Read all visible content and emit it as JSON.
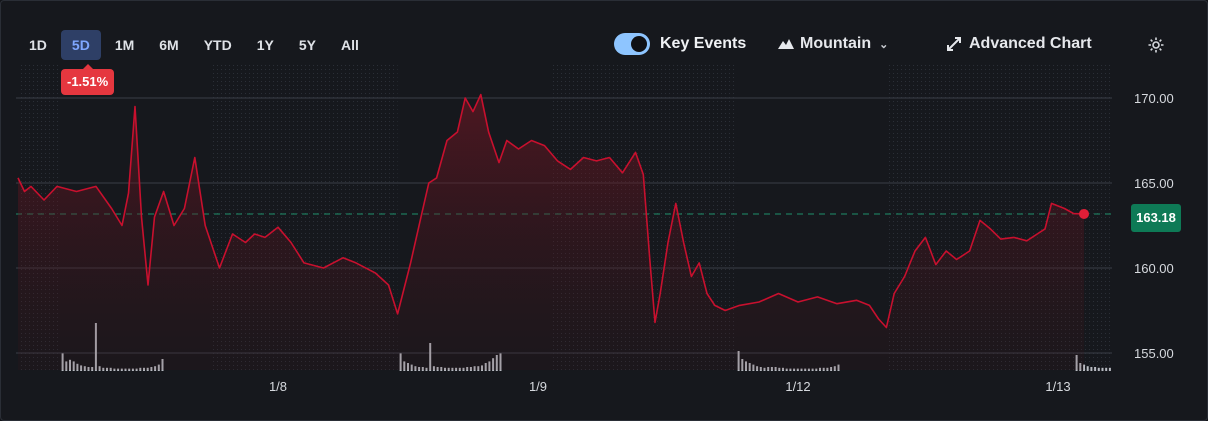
{
  "controls": {
    "ranges": [
      "1D",
      "5D",
      "1M",
      "6M",
      "YTD",
      "1Y",
      "5Y",
      "All"
    ],
    "active_range": "5D",
    "change_badge": "-1.51%",
    "key_events_label": "Key Events",
    "key_events_on": true,
    "chart_type_label": "Mountain",
    "advanced_label": "Advanced Chart"
  },
  "colors": {
    "line": "#c8102e",
    "active_tab": "#2e3f66",
    "badge_red": "#e5373f",
    "last_price_bg": "#0e7a56"
  },
  "chart_data": {
    "type": "area",
    "y_ticks": [
      "170.00",
      "165.00",
      "160.00",
      "155.00"
    ],
    "ylim": [
      154,
      172
    ],
    "x_ticks": [
      "1/8",
      "1/9",
      "1/12",
      "1/13"
    ],
    "last_price_label": "163.18",
    "last_price": 163.18,
    "grid": true,
    "price_series": [
      {
        "x": 0,
        "y": 165.3
      },
      {
        "x": 0.05,
        "y": 164.5
      },
      {
        "x": 0.1,
        "y": 164.8
      },
      {
        "x": 0.2,
        "y": 164.0
      },
      {
        "x": 0.3,
        "y": 164.8
      },
      {
        "x": 0.45,
        "y": 164.5
      },
      {
        "x": 0.6,
        "y": 164.8
      },
      {
        "x": 0.72,
        "y": 163.5
      },
      {
        "x": 0.8,
        "y": 162.5
      },
      {
        "x": 0.85,
        "y": 164.4
      },
      {
        "x": 0.9,
        "y": 169.5
      },
      {
        "x": 0.95,
        "y": 163.0
      },
      {
        "x": 1.0,
        "y": 159.0
      },
      {
        "x": 1.05,
        "y": 163.0
      },
      {
        "x": 1.12,
        "y": 164.5
      },
      {
        "x": 1.2,
        "y": 162.5
      },
      {
        "x": 1.28,
        "y": 163.5
      },
      {
        "x": 1.36,
        "y": 166.5
      },
      {
        "x": 1.44,
        "y": 162.5
      },
      {
        "x": 1.55,
        "y": 160.0
      },
      {
        "x": 1.65,
        "y": 162.0
      },
      {
        "x": 1.75,
        "y": 161.5
      },
      {
        "x": 1.82,
        "y": 162.0
      },
      {
        "x": 1.9,
        "y": 161.8
      },
      {
        "x": 2.0,
        "y": 162.4
      },
      {
        "x": 2.1,
        "y": 161.5
      },
      {
        "x": 2.2,
        "y": 160.3
      },
      {
        "x": 2.35,
        "y": 160.0
      },
      {
        "x": 2.5,
        "y": 160.6
      },
      {
        "x": 2.6,
        "y": 160.3
      },
      {
        "x": 2.75,
        "y": 159.7
      },
      {
        "x": 2.85,
        "y": 159.0
      },
      {
        "x": 2.92,
        "y": 157.3
      },
      {
        "x": 2.96,
        "y": 158.5
      },
      {
        "x": 3.02,
        "y": 160.3
      },
      {
        "x": 3.1,
        "y": 163.0
      },
      {
        "x": 3.16,
        "y": 165.0
      },
      {
        "x": 3.22,
        "y": 165.3
      },
      {
        "x": 3.3,
        "y": 167.5
      },
      {
        "x": 3.38,
        "y": 168.0
      },
      {
        "x": 3.44,
        "y": 170.0
      },
      {
        "x": 3.5,
        "y": 169.2
      },
      {
        "x": 3.56,
        "y": 170.2
      },
      {
        "x": 3.62,
        "y": 168.0
      },
      {
        "x": 3.7,
        "y": 166.2
      },
      {
        "x": 3.76,
        "y": 167.5
      },
      {
        "x": 3.85,
        "y": 167.0
      },
      {
        "x": 3.95,
        "y": 167.5
      },
      {
        "x": 4.05,
        "y": 167.2
      },
      {
        "x": 4.15,
        "y": 166.3
      },
      {
        "x": 4.25,
        "y": 165.8
      },
      {
        "x": 4.35,
        "y": 166.5
      },
      {
        "x": 4.45,
        "y": 166.3
      },
      {
        "x": 4.55,
        "y": 166.5
      },
      {
        "x": 4.65,
        "y": 165.6
      },
      {
        "x": 4.75,
        "y": 166.8
      },
      {
        "x": 4.81,
        "y": 165.5
      },
      {
        "x": 4.86,
        "y": 160.5
      },
      {
        "x": 4.9,
        "y": 156.8
      },
      {
        "x": 4.94,
        "y": 158.5
      },
      {
        "x": 5.0,
        "y": 161.5
      },
      {
        "x": 5.06,
        "y": 163.8
      },
      {
        "x": 5.12,
        "y": 161.5
      },
      {
        "x": 5.18,
        "y": 159.5
      },
      {
        "x": 5.24,
        "y": 160.3
      },
      {
        "x": 5.3,
        "y": 158.5
      },
      {
        "x": 5.36,
        "y": 157.8
      },
      {
        "x": 5.44,
        "y": 157.5
      },
      {
        "x": 5.55,
        "y": 157.8
      },
      {
        "x": 5.7,
        "y": 158.0
      },
      {
        "x": 5.85,
        "y": 158.5
      },
      {
        "x": 6.0,
        "y": 158.0
      },
      {
        "x": 6.15,
        "y": 158.3
      },
      {
        "x": 6.3,
        "y": 157.9
      },
      {
        "x": 6.45,
        "y": 158.1
      },
      {
        "x": 6.55,
        "y": 157.8
      },
      {
        "x": 6.62,
        "y": 157.0
      },
      {
        "x": 6.68,
        "y": 156.5
      },
      {
        "x": 6.74,
        "y": 158.5
      },
      {
        "x": 6.82,
        "y": 159.5
      },
      {
        "x": 6.9,
        "y": 161.0
      },
      {
        "x": 6.98,
        "y": 161.8
      },
      {
        "x": 7.06,
        "y": 160.2
      },
      {
        "x": 7.14,
        "y": 161.0
      },
      {
        "x": 7.22,
        "y": 160.5
      },
      {
        "x": 7.32,
        "y": 161.0
      },
      {
        "x": 7.4,
        "y": 162.8
      },
      {
        "x": 7.48,
        "y": 162.3
      },
      {
        "x": 7.56,
        "y": 161.7
      },
      {
        "x": 7.66,
        "y": 161.8
      },
      {
        "x": 7.76,
        "y": 161.6
      },
      {
        "x": 7.84,
        "y": 162.0
      },
      {
        "x": 7.9,
        "y": 162.3
      },
      {
        "x": 7.95,
        "y": 163.8
      },
      {
        "x": 8.05,
        "y": 163.5
      },
      {
        "x": 8.12,
        "y": 163.2
      },
      {
        "x": 8.2,
        "y": 163.18
      }
    ],
    "volume_sessions": [
      {
        "start": 0.32,
        "bars": [
          0.22,
          0.12,
          0.14,
          0.12,
          0.09,
          0.07,
          0.06,
          0.05,
          0.05,
          0.6,
          0.06,
          0.04,
          0.04,
          0.04,
          0.03,
          0.03,
          0.03,
          0.03,
          0.03,
          0.03,
          0.03,
          0.04,
          0.04,
          0.04,
          0.05,
          0.06,
          0.08,
          0.15
        ]
      },
      {
        "start": 2.92,
        "bars": [
          0.22,
          0.12,
          0.1,
          0.08,
          0.06,
          0.05,
          0.05,
          0.04,
          0.35,
          0.06,
          0.05,
          0.05,
          0.04,
          0.04,
          0.04,
          0.04,
          0.04,
          0.04,
          0.05,
          0.05,
          0.06,
          0.06,
          0.07,
          0.1,
          0.12,
          0.16,
          0.2,
          0.22
        ]
      },
      {
        "start": 5.52,
        "bars": [
          0.25,
          0.15,
          0.12,
          0.1,
          0.08,
          0.06,
          0.05,
          0.04,
          0.05,
          0.05,
          0.05,
          0.04,
          0.04,
          0.03,
          0.03,
          0.03,
          0.03,
          0.03,
          0.03,
          0.03,
          0.03,
          0.03,
          0.04,
          0.04,
          0.04,
          0.05,
          0.06,
          0.08
        ]
      },
      {
        "start": 8.12,
        "bars": [
          0.2,
          0.1,
          0.08,
          0.06,
          0.05,
          0.05,
          0.04,
          0.04,
          0.04,
          0.04,
          0.04,
          0.03,
          0.03,
          0.03,
          0.03,
          0.03,
          0.03,
          0.03,
          0.03,
          0.03,
          0.03,
          0.03,
          0.04,
          0.04,
          0.05,
          0.06,
          0.1,
          0.18
        ]
      }
    ]
  }
}
